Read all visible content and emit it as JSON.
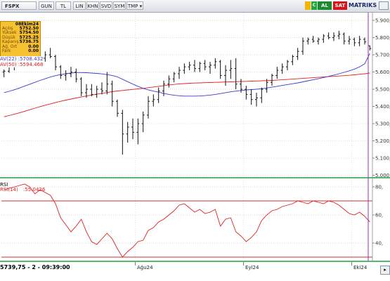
{
  "toolbar": {
    "symbol": "FSPX",
    "buttons": [
      "GUN",
      "TL",
      "LIN",
      "KHN",
      "SVD",
      "SYM",
      "TMP ▾"
    ],
    "buy": "AL",
    "sell": "SAT",
    "brand": "MATRIKS"
  },
  "info_box": {
    "date": "08Ekim24",
    "rows": [
      {
        "label": "Açılış",
        "value": "5752.50"
      },
      {
        "label": "Yüksek",
        "value": "5754.50"
      },
      {
        "label": "Düşük",
        "value": "5725.25"
      },
      {
        "label": "Kapanış",
        "value": "5736.75"
      },
      {
        "label": "Ağ. Ort",
        "value": "0.00"
      },
      {
        "label": "Fark",
        "value": "0.00"
      }
    ]
  },
  "ma_labels": {
    "ma22": "AV(22) :5708.432",
    "ma50": "AV(50) :5594.468"
  },
  "rsi": {
    "title": "RSI",
    "label": "RSI(14)",
    "value": ":55.0426"
  },
  "status_text": "5739,75 - 2 - 09:39:00",
  "colors": {
    "ma22": "#3a3ad0",
    "ma50": "#e02020",
    "rsi_line": "#e02020",
    "rsi_levels": "#c83030",
    "cursor": "#9a30b0",
    "toolbar": "#dfe4ea"
  },
  "chart_data": [
    {
      "type": "ohlc",
      "series_name": "FSPX",
      "y_ticks": [
        5000,
        5100,
        5200,
        5300,
        5400,
        5500,
        5600,
        5700,
        5800,
        5900
      ],
      "ylim": [
        4990,
        5945
      ],
      "x_labels": [
        {
          "label": "Ağu24",
          "index": 26
        },
        {
          "label": "Eyl24",
          "index": 47
        },
        {
          "label": "Eki24",
          "index": 68
        }
      ],
      "bars": [
        {
          "o": 5600,
          "h": 5615,
          "l": 5570,
          "c": 5605
        },
        {
          "o": 5605,
          "h": 5640,
          "l": 5595,
          "c": 5630
        },
        {
          "o": 5630,
          "h": 5660,
          "l": 5610,
          "c": 5650
        },
        {
          "o": 5650,
          "h": 5700,
          "l": 5640,
          "c": 5690
        },
        {
          "o": 5690,
          "h": 5730,
          "l": 5670,
          "c": 5715
        },
        {
          "o": 5715,
          "h": 5725,
          "l": 5680,
          "c": 5700
        },
        {
          "o": 5700,
          "h": 5710,
          "l": 5640,
          "c": 5660
        },
        {
          "o": 5660,
          "h": 5690,
          "l": 5630,
          "c": 5680
        },
        {
          "o": 5680,
          "h": 5720,
          "l": 5660,
          "c": 5700
        },
        {
          "o": 5700,
          "h": 5740,
          "l": 5680,
          "c": 5690
        },
        {
          "o": 5690,
          "h": 5700,
          "l": 5610,
          "c": 5630
        },
        {
          "o": 5630,
          "h": 5640,
          "l": 5560,
          "c": 5580
        },
        {
          "o": 5580,
          "h": 5610,
          "l": 5550,
          "c": 5590
        },
        {
          "o": 5590,
          "h": 5630,
          "l": 5570,
          "c": 5600
        },
        {
          "o": 5600,
          "h": 5620,
          "l": 5540,
          "c": 5560
        },
        {
          "o": 5560,
          "h": 5570,
          "l": 5460,
          "c": 5480
        },
        {
          "o": 5480,
          "h": 5530,
          "l": 5450,
          "c": 5500
        },
        {
          "o": 5500,
          "h": 5530,
          "l": 5460,
          "c": 5470
        },
        {
          "o": 5470,
          "h": 5520,
          "l": 5450,
          "c": 5500
        },
        {
          "o": 5500,
          "h": 5540,
          "l": 5470,
          "c": 5490
        },
        {
          "o": 5490,
          "h": 5600,
          "l": 5470,
          "c": 5530
        },
        {
          "o": 5530,
          "h": 5550,
          "l": 5400,
          "c": 5430
        },
        {
          "o": 5430,
          "h": 5440,
          "l": 5340,
          "c": 5360
        },
        {
          "o": 5360,
          "h": 5380,
          "l": 5120,
          "c": 5240
        },
        {
          "o": 5240,
          "h": 5310,
          "l": 5190,
          "c": 5280
        },
        {
          "o": 5280,
          "h": 5330,
          "l": 5210,
          "c": 5250
        },
        {
          "o": 5250,
          "h": 5330,
          "l": 5180,
          "c": 5300
        },
        {
          "o": 5300,
          "h": 5370,
          "l": 5250,
          "c": 5350
        },
        {
          "o": 5350,
          "h": 5460,
          "l": 5330,
          "c": 5430
        },
        {
          "o": 5430,
          "h": 5470,
          "l": 5400,
          "c": 5440
        },
        {
          "o": 5440,
          "h": 5510,
          "l": 5420,
          "c": 5490
        },
        {
          "o": 5490,
          "h": 5550,
          "l": 5460,
          "c": 5530
        },
        {
          "o": 5530,
          "h": 5580,
          "l": 5510,
          "c": 5560
        },
        {
          "o": 5560,
          "h": 5600,
          "l": 5540,
          "c": 5590
        },
        {
          "o": 5590,
          "h": 5630,
          "l": 5560,
          "c": 5610
        },
        {
          "o": 5610,
          "h": 5650,
          "l": 5590,
          "c": 5630
        },
        {
          "o": 5630,
          "h": 5660,
          "l": 5610,
          "c": 5640
        },
        {
          "o": 5640,
          "h": 5670,
          "l": 5600,
          "c": 5620
        },
        {
          "o": 5620,
          "h": 5660,
          "l": 5600,
          "c": 5650
        },
        {
          "o": 5650,
          "h": 5670,
          "l": 5610,
          "c": 5630
        },
        {
          "o": 5630,
          "h": 5660,
          "l": 5590,
          "c": 5640
        },
        {
          "o": 5640,
          "h": 5680,
          "l": 5620,
          "c": 5660
        },
        {
          "o": 5660,
          "h": 5670,
          "l": 5560,
          "c": 5580
        },
        {
          "o": 5580,
          "h": 5640,
          "l": 5520,
          "c": 5610
        },
        {
          "o": 5610,
          "h": 5670,
          "l": 5560,
          "c": 5620
        },
        {
          "o": 5620,
          "h": 5680,
          "l": 5500,
          "c": 5530
        },
        {
          "o": 5530,
          "h": 5560,
          "l": 5480,
          "c": 5500
        },
        {
          "o": 5500,
          "h": 5520,
          "l": 5440,
          "c": 5470
        },
        {
          "o": 5470,
          "h": 5500,
          "l": 5410,
          "c": 5440
        },
        {
          "o": 5440,
          "h": 5480,
          "l": 5400,
          "c": 5450
        },
        {
          "o": 5450,
          "h": 5510,
          "l": 5420,
          "c": 5500
        },
        {
          "o": 5500,
          "h": 5560,
          "l": 5480,
          "c": 5540
        },
        {
          "o": 5540,
          "h": 5590,
          "l": 5520,
          "c": 5580
        },
        {
          "o": 5580,
          "h": 5630,
          "l": 5560,
          "c": 5610
        },
        {
          "o": 5610,
          "h": 5650,
          "l": 5590,
          "c": 5630
        },
        {
          "o": 5630,
          "h": 5670,
          "l": 5610,
          "c": 5660
        },
        {
          "o": 5660,
          "h": 5700,
          "l": 5640,
          "c": 5690
        },
        {
          "o": 5690,
          "h": 5740,
          "l": 5670,
          "c": 5720
        },
        {
          "o": 5720,
          "h": 5800,
          "l": 5700,
          "c": 5780
        },
        {
          "o": 5780,
          "h": 5800,
          "l": 5760,
          "c": 5790
        },
        {
          "o": 5790,
          "h": 5810,
          "l": 5770,
          "c": 5780
        },
        {
          "o": 5780,
          "h": 5800,
          "l": 5760,
          "c": 5790
        },
        {
          "o": 5790,
          "h": 5820,
          "l": 5770,
          "c": 5810
        },
        {
          "o": 5810,
          "h": 5830,
          "l": 5790,
          "c": 5800
        },
        {
          "o": 5800,
          "h": 5830,
          "l": 5780,
          "c": 5810
        },
        {
          "o": 5810,
          "h": 5840,
          "l": 5790,
          "c": 5820
        },
        {
          "o": 5820,
          "h": 5830,
          "l": 5760,
          "c": 5780
        },
        {
          "o": 5780,
          "h": 5810,
          "l": 5760,
          "c": 5790
        },
        {
          "o": 5790,
          "h": 5800,
          "l": 5750,
          "c": 5770
        },
        {
          "o": 5770,
          "h": 5810,
          "l": 5750,
          "c": 5790
        },
        {
          "o": 5790,
          "h": 5800,
          "l": 5760,
          "c": 5775
        },
        {
          "o": 5752.5,
          "h": 5754.5,
          "l": 5725.25,
          "c": 5736.75
        }
      ],
      "ma22": [
        5480,
        5488,
        5497,
        5507,
        5518,
        5529,
        5540,
        5551,
        5561,
        5571,
        5579,
        5585,
        5590,
        5594,
        5597,
        5597,
        5596,
        5594,
        5592,
        5589,
        5585,
        5580,
        5572,
        5558,
        5544,
        5530,
        5517,
        5505,
        5496,
        5489,
        5483,
        5476,
        5470,
        5465,
        5462,
        5460,
        5460,
        5460,
        5461,
        5463,
        5466,
        5470,
        5475,
        5480,
        5485,
        5489,
        5493,
        5496,
        5498,
        5500,
        5503,
        5507,
        5512,
        5517,
        5522,
        5527,
        5532,
        5537,
        5543,
        5549,
        5555,
        5561,
        5568,
        5575,
        5582,
        5590,
        5598,
        5607,
        5617,
        5630,
        5648,
        5708.432
      ],
      "ma50": [
        5340,
        5347,
        5355,
        5363,
        5372,
        5381,
        5390,
        5399,
        5407,
        5415,
        5423,
        5430,
        5437,
        5443,
        5449,
        5455,
        5461,
        5466,
        5471,
        5476,
        5481,
        5486,
        5490,
        5493,
        5496,
        5499,
        5502,
        5505,
        5509,
        5513,
        5517,
        5521,
        5525,
        5528,
        5531,
        5533,
        5535,
        5536,
        5537,
        5538,
        5539,
        5540,
        5541,
        5542,
        5543,
        5544,
        5545,
        5546,
        5547,
        5548,
        5549,
        5550,
        5551,
        5553,
        5555,
        5557,
        5559,
        5561,
        5563,
        5565,
        5567,
        5569,
        5571,
        5573,
        5575,
        5577,
        5579,
        5581,
        5584,
        5587,
        5590,
        5594.468
      ]
    },
    {
      "type": "line",
      "series_name": "RSI(14)",
      "y_ticks": [
        40,
        60,
        80
      ],
      "ylim": [
        28,
        85
      ],
      "levels": [
        30,
        70
      ],
      "values": [
        78,
        79,
        80,
        81,
        82,
        80,
        75,
        78,
        76,
        74,
        68,
        58,
        53,
        48,
        52,
        57,
        48,
        41,
        39,
        43,
        47,
        43,
        36,
        30,
        34,
        37,
        41,
        42,
        49,
        51,
        55,
        57,
        60,
        63,
        67,
        68,
        65,
        62,
        64,
        61,
        62,
        64,
        52,
        57,
        58,
        48,
        45,
        41,
        44,
        48,
        56,
        60,
        63,
        64,
        66,
        67,
        68,
        70,
        69,
        68,
        70,
        69,
        68,
        70,
        69,
        67,
        64,
        61,
        60,
        62,
        59,
        55.0426
      ]
    }
  ]
}
